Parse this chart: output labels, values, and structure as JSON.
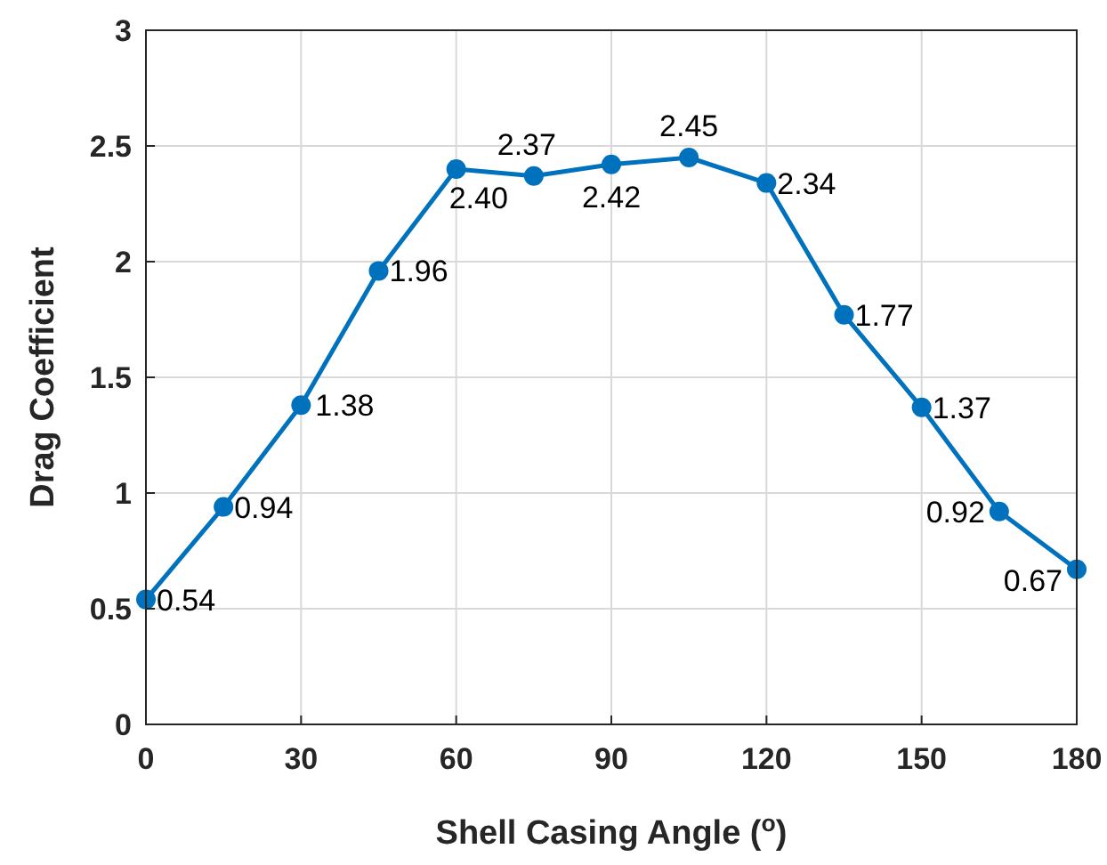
{
  "chart_data": {
    "type": "line",
    "xlabel": "Shell Casing Angle ($^{o}$)",
    "ylabel": "Drag Coefficient",
    "x": [
      0,
      15,
      30,
      45,
      60,
      75,
      90,
      105,
      120,
      135,
      150,
      165,
      180
    ],
    "series": [
      {
        "color": "#0072bd",
        "values": [
          0.54,
          0.94,
          1.38,
          1.96,
          2.4,
          2.37,
          2.42,
          2.45,
          2.34,
          1.77,
          1.37,
          0.92,
          0.67
        ],
        "value_labels": [
          "0.54",
          "0.94",
          "1.38",
          "1.96",
          "2.40",
          "2.37",
          "2.42",
          "2.45",
          "2.34",
          "1.77",
          "1.37",
          "0.92",
          "0.67"
        ]
      }
    ],
    "xlim": [
      0,
      180
    ],
    "xticks": [
      0,
      30,
      60,
      90,
      120,
      150,
      180
    ],
    "ylim": [
      0,
      3
    ],
    "yticks": [
      0,
      0.5,
      1,
      1.5,
      2,
      2.5,
      3
    ],
    "grid": true,
    "marker": "circle",
    "line_style": "solid"
  }
}
